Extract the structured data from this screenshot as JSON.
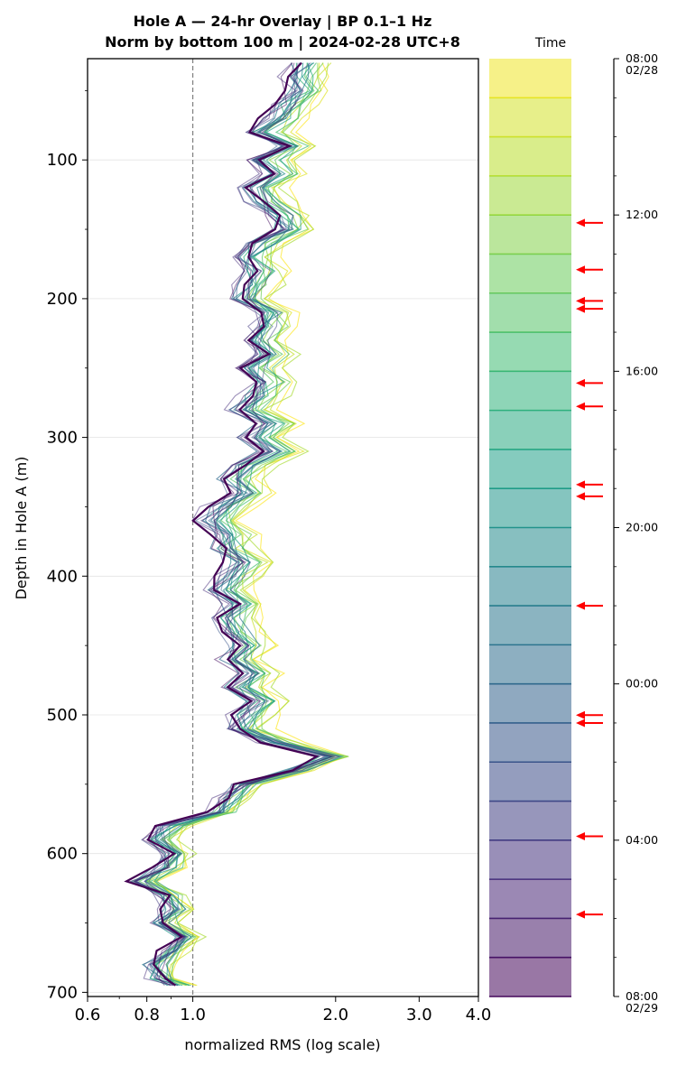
{
  "chart_data": {
    "type": "line",
    "title": "Hole A — 24-hr Overlay  |  BP 0.1–1 Hz",
    "subtitle": "Norm by bottom 100 m  |  2024-02-28 UTC+8",
    "xlabel": "normalized RMS  (log scale)",
    "ylabel": "Depth in Hole A (m)",
    "xscale": "log",
    "xlim": [
      0.6,
      4.0
    ],
    "ylim": [
      703,
      27
    ],
    "y_inverted": true,
    "x_ticks": [
      "0.6",
      "0.8",
      "1.0",
      "2.0",
      "3.0",
      "4.0"
    ],
    "y_ticks": [
      "100",
      "200",
      "300",
      "400",
      "500",
      "600",
      "700"
    ],
    "reference_line": {
      "x": 1.0,
      "style": "dashed",
      "color": "#808080"
    },
    "grid": "horizontal",
    "colormap": "viridis",
    "colorbar": {
      "title": "Time",
      "ticks": [
        "08:00\n02/28",
        "12:00",
        "16:00",
        "20:00",
        "00:00",
        "04:00",
        "08:00\n02/29"
      ],
      "tick_hours": [
        0,
        4,
        8,
        12,
        16,
        20,
        24
      ],
      "n_bands": 24,
      "arrow_hours": [
        4.2,
        5.4,
        6.2,
        6.4,
        8.3,
        8.9,
        10.9,
        11.2,
        14.0,
        16.8,
        17.0,
        19.9,
        21.9
      ],
      "arrow_color": "#ff0000"
    },
    "series_count": 24,
    "depth": [
      30,
      40,
      50,
      60,
      70,
      80,
      90,
      100,
      110,
      120,
      130,
      140,
      150,
      160,
      170,
      180,
      190,
      200,
      210,
      220,
      230,
      240,
      250,
      260,
      270,
      280,
      290,
      300,
      310,
      320,
      330,
      340,
      350,
      360,
      370,
      380,
      390,
      400,
      410,
      420,
      430,
      440,
      450,
      460,
      470,
      480,
      490,
      500,
      510,
      520,
      530,
      540,
      550,
      560,
      570,
      580,
      590,
      600,
      610,
      620,
      630,
      640,
      650,
      660,
      670,
      680,
      690,
      695
    ],
    "series_mean": [
      1.72,
      1.68,
      1.7,
      1.62,
      1.52,
      1.4,
      1.6,
      1.42,
      1.5,
      1.38,
      1.42,
      1.55,
      1.58,
      1.4,
      1.32,
      1.38,
      1.35,
      1.28,
      1.45,
      1.42,
      1.37,
      1.45,
      1.34,
      1.44,
      1.38,
      1.3,
      1.48,
      1.36,
      1.5,
      1.3,
      1.22,
      1.3,
      1.16,
      1.1,
      1.2,
      1.18,
      1.28,
      1.22,
      1.16,
      1.26,
      1.2,
      1.24,
      1.3,
      1.22,
      1.35,
      1.26,
      1.38,
      1.3,
      1.26,
      1.5,
      1.95,
      1.65,
      1.28,
      1.2,
      1.14,
      0.9,
      0.84,
      0.92,
      0.88,
      0.78,
      0.88,
      0.92,
      0.86,
      0.96,
      0.9,
      0.84,
      0.86,
      0.92
    ],
    "series_offsets": [
      0.14,
      0.11,
      0.09,
      0.12,
      0.05,
      0.07,
      0.02,
      0.06,
      -0.01,
      0.03,
      0.04,
      -0.02,
      0.0,
      -0.03,
      0.02,
      -0.04,
      -0.01,
      -0.05,
      0.01,
      -0.03,
      -0.06,
      -0.02,
      -0.04,
      -0.05
    ]
  }
}
